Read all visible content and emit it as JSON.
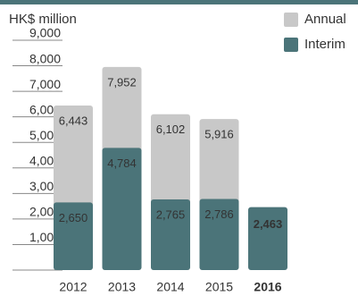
{
  "chart_data": {
    "type": "bar",
    "title": "HK$ million",
    "categories": [
      "2012",
      "2013",
      "2014",
      "2015",
      "2016"
    ],
    "series": [
      {
        "name": "Annual",
        "color": "#c8c8c8",
        "values": [
          6443,
          7952,
          6102,
          5916,
          null
        ],
        "value_labels": [
          "6,443",
          "7,952",
          "6,102",
          "5,916",
          null
        ]
      },
      {
        "name": "Interim",
        "color": "#4b7479",
        "values": [
          2650,
          4784,
          2765,
          2786,
          2463
        ],
        "value_labels": [
          "2,650",
          "4,784",
          "2,765",
          "2,786",
          "2,463"
        ]
      }
    ],
    "ylim": [
      0,
      9000
    ],
    "yticks": [
      0,
      {
        "value": 1000,
        "label": "1,000"
      },
      {
        "value": 2000,
        "label": "2,000"
      },
      {
        "value": 3000,
        "label": "3,000"
      },
      {
        "value": 4000,
        "label": "4,000"
      },
      {
        "value": 5000,
        "label": "5,000"
      },
      {
        "value": 6000,
        "label": "6,000"
      },
      {
        "value": 7000,
        "label": "7,000"
      },
      {
        "value": 8000,
        "label": "8,000"
      },
      {
        "value": 9000,
        "label": "9,000"
      }
    ],
    "legend": "top-right",
    "overlap": true
  }
}
